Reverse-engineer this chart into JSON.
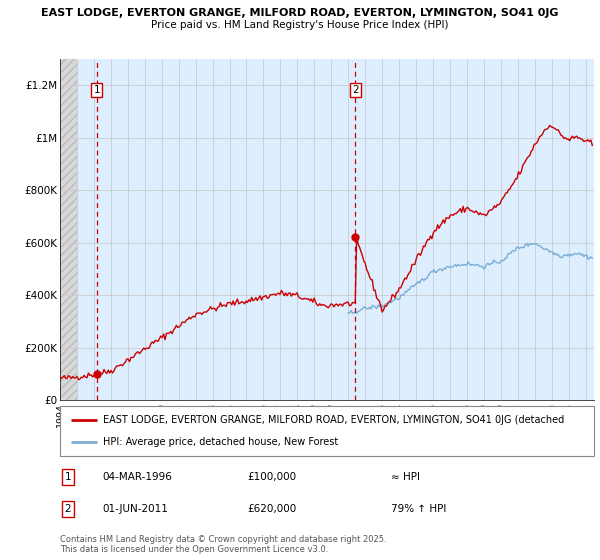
{
  "title1": "EAST LODGE, EVERTON GRANGE, MILFORD ROAD, EVERTON, LYMINGTON, SO41 0JG",
  "title2": "Price paid vs. HM Land Registry's House Price Index (HPI)",
  "ylabel_ticks": [
    "£0",
    "£200K",
    "£400K",
    "£600K",
    "£800K",
    "£1M",
    "£1.2M"
  ],
  "ytick_vals": [
    0,
    200000,
    400000,
    600000,
    800000,
    1000000,
    1200000
  ],
  "ylim": [
    0,
    1300000
  ],
  "xlim_start": 1994.0,
  "xlim_end": 2025.5,
  "purchase1_date": 1996.17,
  "purchase1_price": 100000,
  "purchase2_date": 2011.42,
  "purchase2_price": 620000,
  "red_color": "#cc0000",
  "blue_color": "#7aadd4",
  "grid_color": "#cccccc",
  "legend_label_red": "EAST LODGE, EVERTON GRANGE, MILFORD ROAD, EVERTON, LYMINGTON, SO41 0JG (detached",
  "legend_label_blue": "HPI: Average price, detached house, New Forest",
  "note1_date": "04-MAR-1996",
  "note1_price": "£100,000",
  "note1_hpi": "≈ HPI",
  "note2_date": "01-JUN-2011",
  "note2_price": "£620,000",
  "note2_hpi": "79% ↑ HPI",
  "footer": "Contains HM Land Registry data © Crown copyright and database right 2025.\nThis data is licensed under the Open Government Licence v3.0."
}
